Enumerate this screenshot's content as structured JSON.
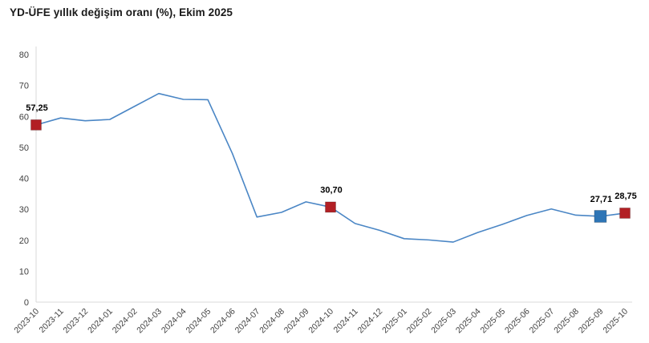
{
  "title": "YD-ÜFE yıllık değişim oranı (%), Ekim 2025",
  "chart_data": {
    "type": "line",
    "title": "YD-ÜFE yıllık değişim oranı (%), Ekim 2025",
    "x": [
      "2023-10",
      "2023-11",
      "2023-12",
      "2024-01",
      "2024-02",
      "2024-03",
      "2024-04",
      "2024-05",
      "2024-06",
      "2024-07",
      "2024-08",
      "2024-09",
      "2024-10",
      "2024-11",
      "2024-12",
      "2025-01",
      "2025-02",
      "2025-03",
      "2025-04",
      "2025-05",
      "2025-06",
      "2025-07",
      "2025-08",
      "2025-09",
      "2025-10"
    ],
    "series": [
      {
        "name": "YD-ÜFE yıllık değişim oranı (%)",
        "values": [
          57.25,
          59.5,
          58.6,
          59.0,
          63.2,
          67.4,
          65.5,
          65.4,
          48.0,
          27.5,
          29.0,
          32.4,
          30.7,
          25.4,
          23.2,
          20.5,
          20.1,
          19.4,
          22.5,
          25.1,
          28.0,
          30.1,
          28.1,
          27.71,
          28.75
        ]
      }
    ],
    "ylim": [
      0,
      80
    ],
    "yticks": [
      0,
      10,
      20,
      30,
      40,
      50,
      60,
      70,
      80
    ],
    "grid": false,
    "legend": "none",
    "colors": {
      "line": "#4a86c5",
      "axis": "#d9d9d9",
      "tick_text": "#3f3f3f",
      "annotation_text": "#000000",
      "marker_red": "#b21f24",
      "marker_blue": "#2e75b6"
    },
    "annotations": [
      {
        "x": "2023-10",
        "value": 57.25,
        "label": "57,25",
        "marker": "square",
        "color": "#b21f24",
        "size": 13
      },
      {
        "x": "2024-10",
        "value": 30.7,
        "label": "30,70",
        "marker": "square",
        "color": "#b21f24",
        "size": 13
      },
      {
        "x": "2025-09",
        "value": 27.71,
        "label": "27,71",
        "marker": "square",
        "color": "#2e75b6",
        "size": 15
      },
      {
        "x": "2025-10",
        "value": 28.75,
        "label": "28,75",
        "marker": "square",
        "color": "#b21f24",
        "size": 13
      }
    ]
  }
}
